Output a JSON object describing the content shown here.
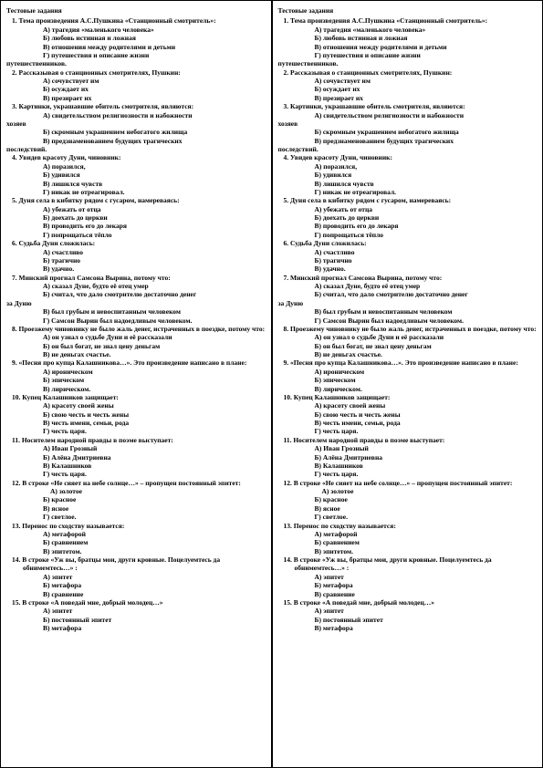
{
  "header": "Тестовые задания",
  "questions": [
    {
      "num": "1.",
      "text": "Тема произведения А.С.Пушкина «Станционный смотритель»:",
      "opts": [
        "А) трагедия «маленького человека»",
        "Б) любовь истинная и ложная",
        "В) отношения между родителями и детьми",
        "Г) путешествия и описание жизни"
      ],
      "tail": "путешественников."
    },
    {
      "num": "2.",
      "text": "Рассказывая о станционных смотрителях, Пушкин:",
      "opts": [
        "А) сочувствует им",
        "Б) осуждает их",
        "В) презирает их"
      ]
    },
    {
      "num": "3.",
      "text": "Картинки, украшавшие обитель смотрителя, являются:",
      "pre": "А) свидетельством религиозности и набожности",
      "pretail": "хозяев",
      "opts": [
        "Б) скромным украшением небогатого жилища",
        "В) предзнаменованием будущих трагических"
      ],
      "tail": "последствий."
    },
    {
      "num": "4.",
      "text": "Увидев красоту Дуни, чиновник:",
      "opts": [
        "А) поразился,",
        "Б) удивился",
        "В) лишился чувств",
        "Г) никак не отреагировал."
      ]
    },
    {
      "num": "5.",
      "text": "Дуня села в кибитку рядом с гусаром, намереваясь:",
      "opts": [
        "А) убежать от отца",
        "Б) доехать до церкви",
        "В) проводить его до лекаря",
        "Г) попрощаться тёпло"
      ]
    },
    {
      "num": "6.",
      "text": "Судьба Дуни сложилась:",
      "opts": [
        "А) счастливо",
        "Б) трагично",
        "В) удачно."
      ]
    },
    {
      "num": "7.",
      "text": "Минский прогнал Самсона Вырина, потому что:",
      "opts": [
        "А) сказал Дуне, будто её отец умер",
        "Б) считал, что дало смотрителю достаточно денег"
      ],
      "tail": "за Дуню",
      "opts2": [
        "В) был грубым и невоспитанным человеком",
        "Г) Самсон Вырин был надоедливым человеком."
      ]
    },
    {
      "num": "8.",
      "text": "Проезжему чиновнику не было жаль денег, истраченных в поездке, потому что:",
      "opts": [
        "А) он узнал о судьбе Дуни и её рассказали",
        "Б) он был богат, не знал цену деньгам",
        "В) не деньгах счастье."
      ]
    },
    {
      "num": "9.",
      "text": "«Песня про купца Калашникова…». Это произведение написано в плане:",
      "opts": [
        "А) ироническом",
        "Б) эпическом",
        "В) лирическом."
      ]
    },
    {
      "num": "10.",
      "text": "Купец Калашников защищает:",
      "opts": [
        "А) красоту своей жены",
        "Б) свою честь и честь жены",
        "В) честь имени, семьи, рода",
        "Г) честь царя."
      ]
    },
    {
      "num": "11.",
      "text": "Носителем народной правды в поэме выступает:",
      "opts": [
        "А) Иван Грозный",
        "Б) Алёна Дмитриевна",
        "В) Калашников",
        "Г) честь царя."
      ]
    },
    {
      "num": "12.",
      "text": "В строке «Не сияет на небе солнце…» – пропущен постоянный эпитет:",
      "inlineA": "А) золотое",
      "opts": [
        "Б) красное",
        "В) ясное",
        "Г) светлое."
      ]
    },
    {
      "num": "13.",
      "text": "Перенос по сходству называется:",
      "opts": [
        "А) метафорой",
        "Б) сравнением",
        "В) эпитетом."
      ]
    },
    {
      "num": "14.",
      "text": "В строке «Уж вы, братцы мои, други кровные. Поцелуемтесь да обнимемтесь…» :",
      "opts": [
        "А) эпитет",
        "Б) метафора",
        "В) сравнение"
      ]
    },
    {
      "num": "15.",
      "text": "В строке «А поведай мне, добрый молодец…»",
      "opts": [
        "А) эпитет",
        "Б) постоянный эпитет",
        "В) метафора"
      ]
    }
  ]
}
